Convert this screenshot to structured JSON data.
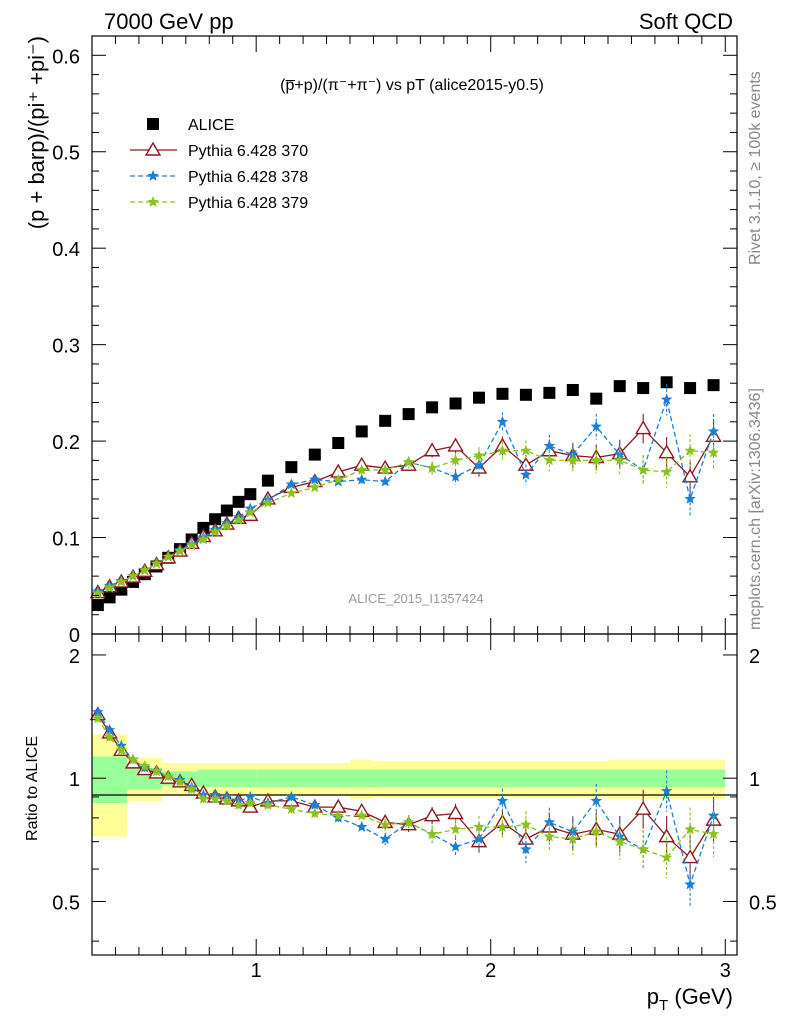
{
  "header": {
    "left": "7000 GeV pp",
    "right": "Soft QCD"
  },
  "side_labels": {
    "rivet": "Rivet 3.1.10, ≥ 100k events",
    "mcplots": "mcplots.cern.ch [arXiv:1306.3436]"
  },
  "chart_data": [
    {
      "type": "scatter",
      "title": "(p̅+p)/(π⁻+π⁻) vs pT (alice2015-y0.5)",
      "ylabel": "(p + barp)/(pi⁺ +pi⁻)",
      "watermark": "ALICE_2015_I1357424",
      "ylim": [
        0,
        0.62
      ],
      "xlim": [
        0.3,
        3.05
      ],
      "yticks": [
        "0",
        "0.1",
        "0.2",
        "0.3",
        "0.4",
        "0.5",
        "0.6"
      ],
      "x": [
        0.325,
        0.375,
        0.425,
        0.475,
        0.525,
        0.575,
        0.625,
        0.675,
        0.725,
        0.775,
        0.825,
        0.875,
        0.925,
        0.975,
        1.05,
        1.15,
        1.25,
        1.35,
        1.45,
        1.55,
        1.65,
        1.75,
        1.85,
        1.95,
        2.05,
        2.15,
        2.25,
        2.35,
        2.45,
        2.55,
        2.65,
        2.75,
        2.85,
        2.95
      ],
      "legend": {
        "placement": "top-left",
        "entries": [
          "ALICE",
          "Pythia 6.428 370",
          "Pythia 6.428 378",
          "Pythia 6.428 379"
        ]
      },
      "series": [
        {
          "name": "ALICE",
          "color": "#000000",
          "marker": "square",
          "values": [
            0.03,
            0.038,
            0.046,
            0.054,
            0.062,
            0.07,
            0.079,
            0.088,
            0.098,
            0.11,
            0.119,
            0.128,
            0.137,
            0.145,
            0.159,
            0.173,
            0.186,
            0.198,
            0.21,
            0.221,
            0.228,
            0.235,
            0.239,
            0.245,
            0.249,
            0.248,
            0.25,
            0.253,
            0.244,
            0.257,
            0.255,
            0.261,
            0.255,
            0.258
          ]
        },
        {
          "name": "Pythia 6.428 370",
          "color": "#8b1a1a",
          "marker": "triangle",
          "line": "solid",
          "values": [
            0.043,
            0.049,
            0.054,
            0.059,
            0.065,
            0.072,
            0.079,
            0.086,
            0.094,
            0.101,
            0.107,
            0.114,
            0.12,
            0.123,
            0.14,
            0.152,
            0.158,
            0.168,
            0.175,
            0.172,
            0.175,
            0.19,
            0.195,
            0.172,
            0.195,
            0.175,
            0.19,
            0.185,
            0.183,
            0.187,
            0.213,
            0.188,
            0.163,
            0.205
          ]
        },
        {
          "name": "Pythia 6.428 378",
          "color": "#1a7fd6",
          "marker": "star",
          "line": "dashed",
          "values": [
            0.044,
            0.05,
            0.055,
            0.06,
            0.066,
            0.073,
            0.08,
            0.087,
            0.093,
            0.1,
            0.108,
            0.115,
            0.121,
            0.13,
            0.139,
            0.155,
            0.16,
            0.158,
            0.16,
            0.158,
            0.178,
            0.172,
            0.163,
            0.175,
            0.22,
            0.165,
            0.195,
            0.186,
            0.215,
            0.186,
            0.17,
            0.243,
            0.14,
            0.21
          ]
        },
        {
          "name": "Pythia 6.428 379",
          "color": "#8cc21a",
          "marker": "star",
          "line": "dashed",
          "values": [
            0.042,
            0.048,
            0.054,
            0.06,
            0.066,
            0.073,
            0.08,
            0.086,
            0.092,
            0.098,
            0.106,
            0.112,
            0.118,
            0.126,
            0.136,
            0.146,
            0.152,
            0.16,
            0.17,
            0.17,
            0.178,
            0.172,
            0.18,
            0.185,
            0.19,
            0.19,
            0.18,
            0.18,
            0.18,
            0.18,
            0.17,
            0.168,
            0.19,
            0.188
          ]
        }
      ]
    },
    {
      "type": "scatter",
      "ylabel": "Ratio to ALICE",
      "xlabel": "p",
      "xlabel_sub": "T",
      "xlabel_unit": " (GeV)",
      "ylim": [
        0.37,
        2.25
      ],
      "xlim": [
        0.3,
        3.05
      ],
      "yticks": [
        "0.5",
        "1",
        "2"
      ],
      "xticks": [
        "1",
        "2",
        "3"
      ],
      "band": {
        "x_edges": [
          0.3,
          0.45,
          0.6,
          0.75,
          1.0,
          1.4,
          1.5,
          2.5,
          3.0
        ],
        "green_half": [
          0.13,
          0.06,
          0.04,
          0.05,
          0.05,
          0.05,
          0.05,
          0.05,
          0.08
        ],
        "yellow_half": [
          0.28,
          0.12,
          0.09,
          0.09,
          0.09,
          0.11,
          0.1,
          0.11,
          0.12
        ]
      },
      "series": [
        {
          "name": "Pythia 6.428 370",
          "color": "#8b1a1a",
          "values": [
            1.43,
            1.29,
            1.17,
            1.09,
            1.05,
            1.03,
            1.0,
            0.98,
            0.96,
            0.92,
            0.9,
            0.89,
            0.88,
            0.85,
            0.88,
            0.88,
            0.85,
            0.85,
            0.83,
            0.78,
            0.77,
            0.81,
            0.82,
            0.7,
            0.78,
            0.71,
            0.76,
            0.73,
            0.75,
            0.73,
            0.84,
            0.72,
            0.64,
            0.79
          ]
        },
        {
          "name": "Pythia 6.428 378",
          "color": "#1a7fd6",
          "values": [
            1.45,
            1.31,
            1.2,
            1.11,
            1.06,
            1.04,
            1.01,
            0.99,
            0.95,
            0.91,
            0.91,
            0.9,
            0.88,
            0.9,
            0.87,
            0.9,
            0.86,
            0.8,
            0.76,
            0.71,
            0.78,
            0.73,
            0.68,
            0.71,
            0.88,
            0.67,
            0.78,
            0.74,
            0.88,
            0.72,
            0.67,
            0.93,
            0.55,
            0.81
          ]
        },
        {
          "name": "Pythia 6.428 379",
          "color": "#8cc21a",
          "values": [
            1.4,
            1.26,
            1.17,
            1.11,
            1.07,
            1.04,
            1.01,
            0.98,
            0.94,
            0.89,
            0.89,
            0.88,
            0.86,
            0.87,
            0.86,
            0.84,
            0.82,
            0.81,
            0.81,
            0.77,
            0.78,
            0.73,
            0.75,
            0.76,
            0.76,
            0.77,
            0.72,
            0.71,
            0.74,
            0.7,
            0.67,
            0.64,
            0.75,
            0.73
          ]
        }
      ]
    }
  ]
}
